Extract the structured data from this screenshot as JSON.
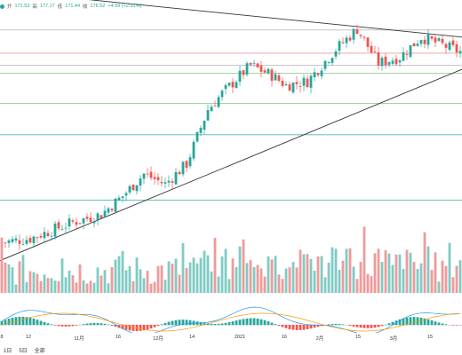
{
  "legend": {
    "open_label": "开",
    "open": "171.53",
    "high_label": "高",
    "high": "177.17",
    "low_label": "低",
    "low": "171.44",
    "close_label": "收",
    "close": "176.52",
    "change": "+4.99 (+2.91%)"
  },
  "colors": {
    "up": "#26a69a",
    "down": "#ef5350",
    "ma_blue": "#2196f3",
    "ma_orange": "#ff9800",
    "trend": "#333333",
    "hline_red": "#ef9a9a",
    "hline_green": "#81c784",
    "hline_teal": "#4db6ac",
    "hline_gray": "#bdbdbd"
  },
  "x_axis": {
    "labels": [
      "8",
      "12",
      "11月",
      "16",
      "12月",
      "14",
      "2021",
      "16",
      "2月",
      "15",
      "3月",
      "15"
    ]
  },
  "timeframes": [
    "1日",
    "5日",
    "全部"
  ],
  "chart_data": {
    "type": "candlestick",
    "description_units": "price",
    "price_range": [
      60,
      190
    ],
    "horizontal_levels": [
      {
        "price": 179.5,
        "color": "gray"
      },
      {
        "price": 168.0,
        "color": "red"
      },
      {
        "price": 162.0,
        "color": "gray"
      },
      {
        "price": 158.0,
        "color": "green"
      },
      {
        "price": 143.0,
        "color": "green"
      },
      {
        "price": 127.5,
        "color": "teal"
      },
      {
        "price": 95.0,
        "color": "teal"
      }
    ],
    "trendlines": [
      {
        "from": [
          0,
          199
        ],
        "to": [
          130,
          176
        ]
      },
      {
        "from": [
          0,
          65
        ],
        "to": [
          130,
          160
        ]
      }
    ],
    "candles_count": 130,
    "indicators": [
      "volume",
      "macd"
    ]
  }
}
